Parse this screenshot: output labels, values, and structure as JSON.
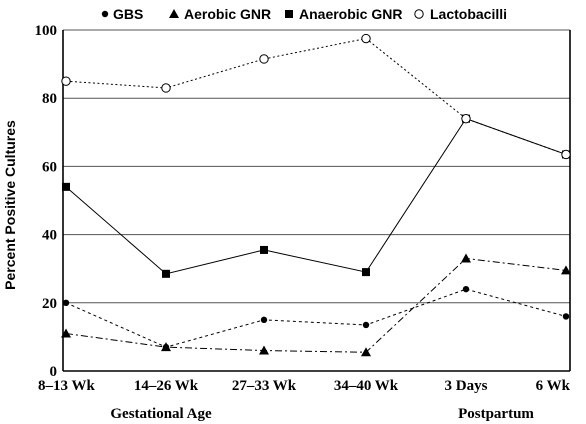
{
  "chart_data": {
    "type": "line",
    "ylabel": "Percent Positive Cultures",
    "ylim": [
      0,
      100
    ],
    "yticks": [
      0,
      20,
      40,
      60,
      80,
      100
    ],
    "grid": "horizontal",
    "categories": [
      "8–13 Wk",
      "14–26 Wk",
      "27–33 Wk",
      "34–40 Wk",
      "3 Days",
      "6 Wk"
    ],
    "group_labels": {
      "gestational": "Gestational Age",
      "postpartum": "Postpartum"
    },
    "legend_position": "top",
    "series": [
      {
        "name": "GBS",
        "marker": "filled-circle",
        "line": "dashed",
        "values": [
          20,
          7,
          15,
          13.5,
          24,
          16
        ]
      },
      {
        "name": "Aerobic GNR",
        "marker": "filled-triangle",
        "line": "dash-dot",
        "values": [
          11,
          7,
          6,
          5.5,
          33,
          29.5
        ]
      },
      {
        "name": "Anaerobic GNR",
        "marker": "filled-square",
        "line": "solid",
        "values": [
          54,
          28.5,
          35.5,
          29,
          74,
          63.5
        ]
      },
      {
        "name": "Lactobacilli",
        "marker": "open-circle",
        "line": "dotted",
        "values": [
          85,
          83,
          91.5,
          97.5,
          74,
          63.5
        ]
      }
    ]
  }
}
